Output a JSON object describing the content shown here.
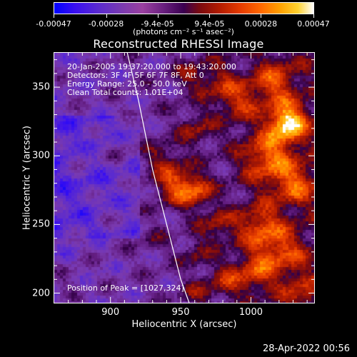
{
  "colorbar": {
    "tick_labels": [
      "-0.00047",
      "-0.00028",
      "-9.4e-05",
      "9.4e-05",
      "0.00028",
      "0.00047"
    ],
    "tick_values": [
      -0.00047,
      -0.00028,
      -9.4e-05,
      9.4e-05,
      0.00028,
      0.00047
    ],
    "range": [
      -0.00047,
      0.00047
    ],
    "unit_label": "(photons cm⁻² s⁻¹ asec⁻²)",
    "colors": [
      "#0000ff",
      "#5a2ad0",
      "#9a40a0",
      "#3a0050",
      "#b41c00",
      "#ff6a00",
      "#ffd230",
      "#ffffff"
    ]
  },
  "info": {
    "time_range": "20-Jan-2005 19:37:20.000 to 19:43:20.000",
    "detectors": "Detectors: 3F 4F 5F 6F 7F 8F, Att 0",
    "energy": "Energy Range: 25.0 - 50.0 keV",
    "clean": "Clean     Total counts: 1.01E+04",
    "peak": "Position of Peak = [1027,324]"
  },
  "footer": {
    "date": "28-Apr-2022 00:56"
  },
  "chart_data": {
    "type": "heatmap",
    "title": "Reconstructed RHESSI Image",
    "xlabel": "Heliocentric X (arcsec)",
    "ylabel": "Heliocentric Y (arcsec)",
    "xlim": [
      860,
      1045
    ],
    "ylim": [
      193,
      375
    ],
    "x_ticks": [
      900,
      950,
      1000
    ],
    "y_ticks": [
      200,
      250,
      300,
      350
    ],
    "limb_curve": {
      "x": [
        912,
        920,
        930,
        940,
        950,
        956
      ],
      "y": [
        375,
        340,
        290,
        250,
        210,
        193
      ]
    },
    "peak": {
      "x": 1027,
      "y": 324
    },
    "value_range": [
      -0.00047,
      0.00047
    ]
  }
}
